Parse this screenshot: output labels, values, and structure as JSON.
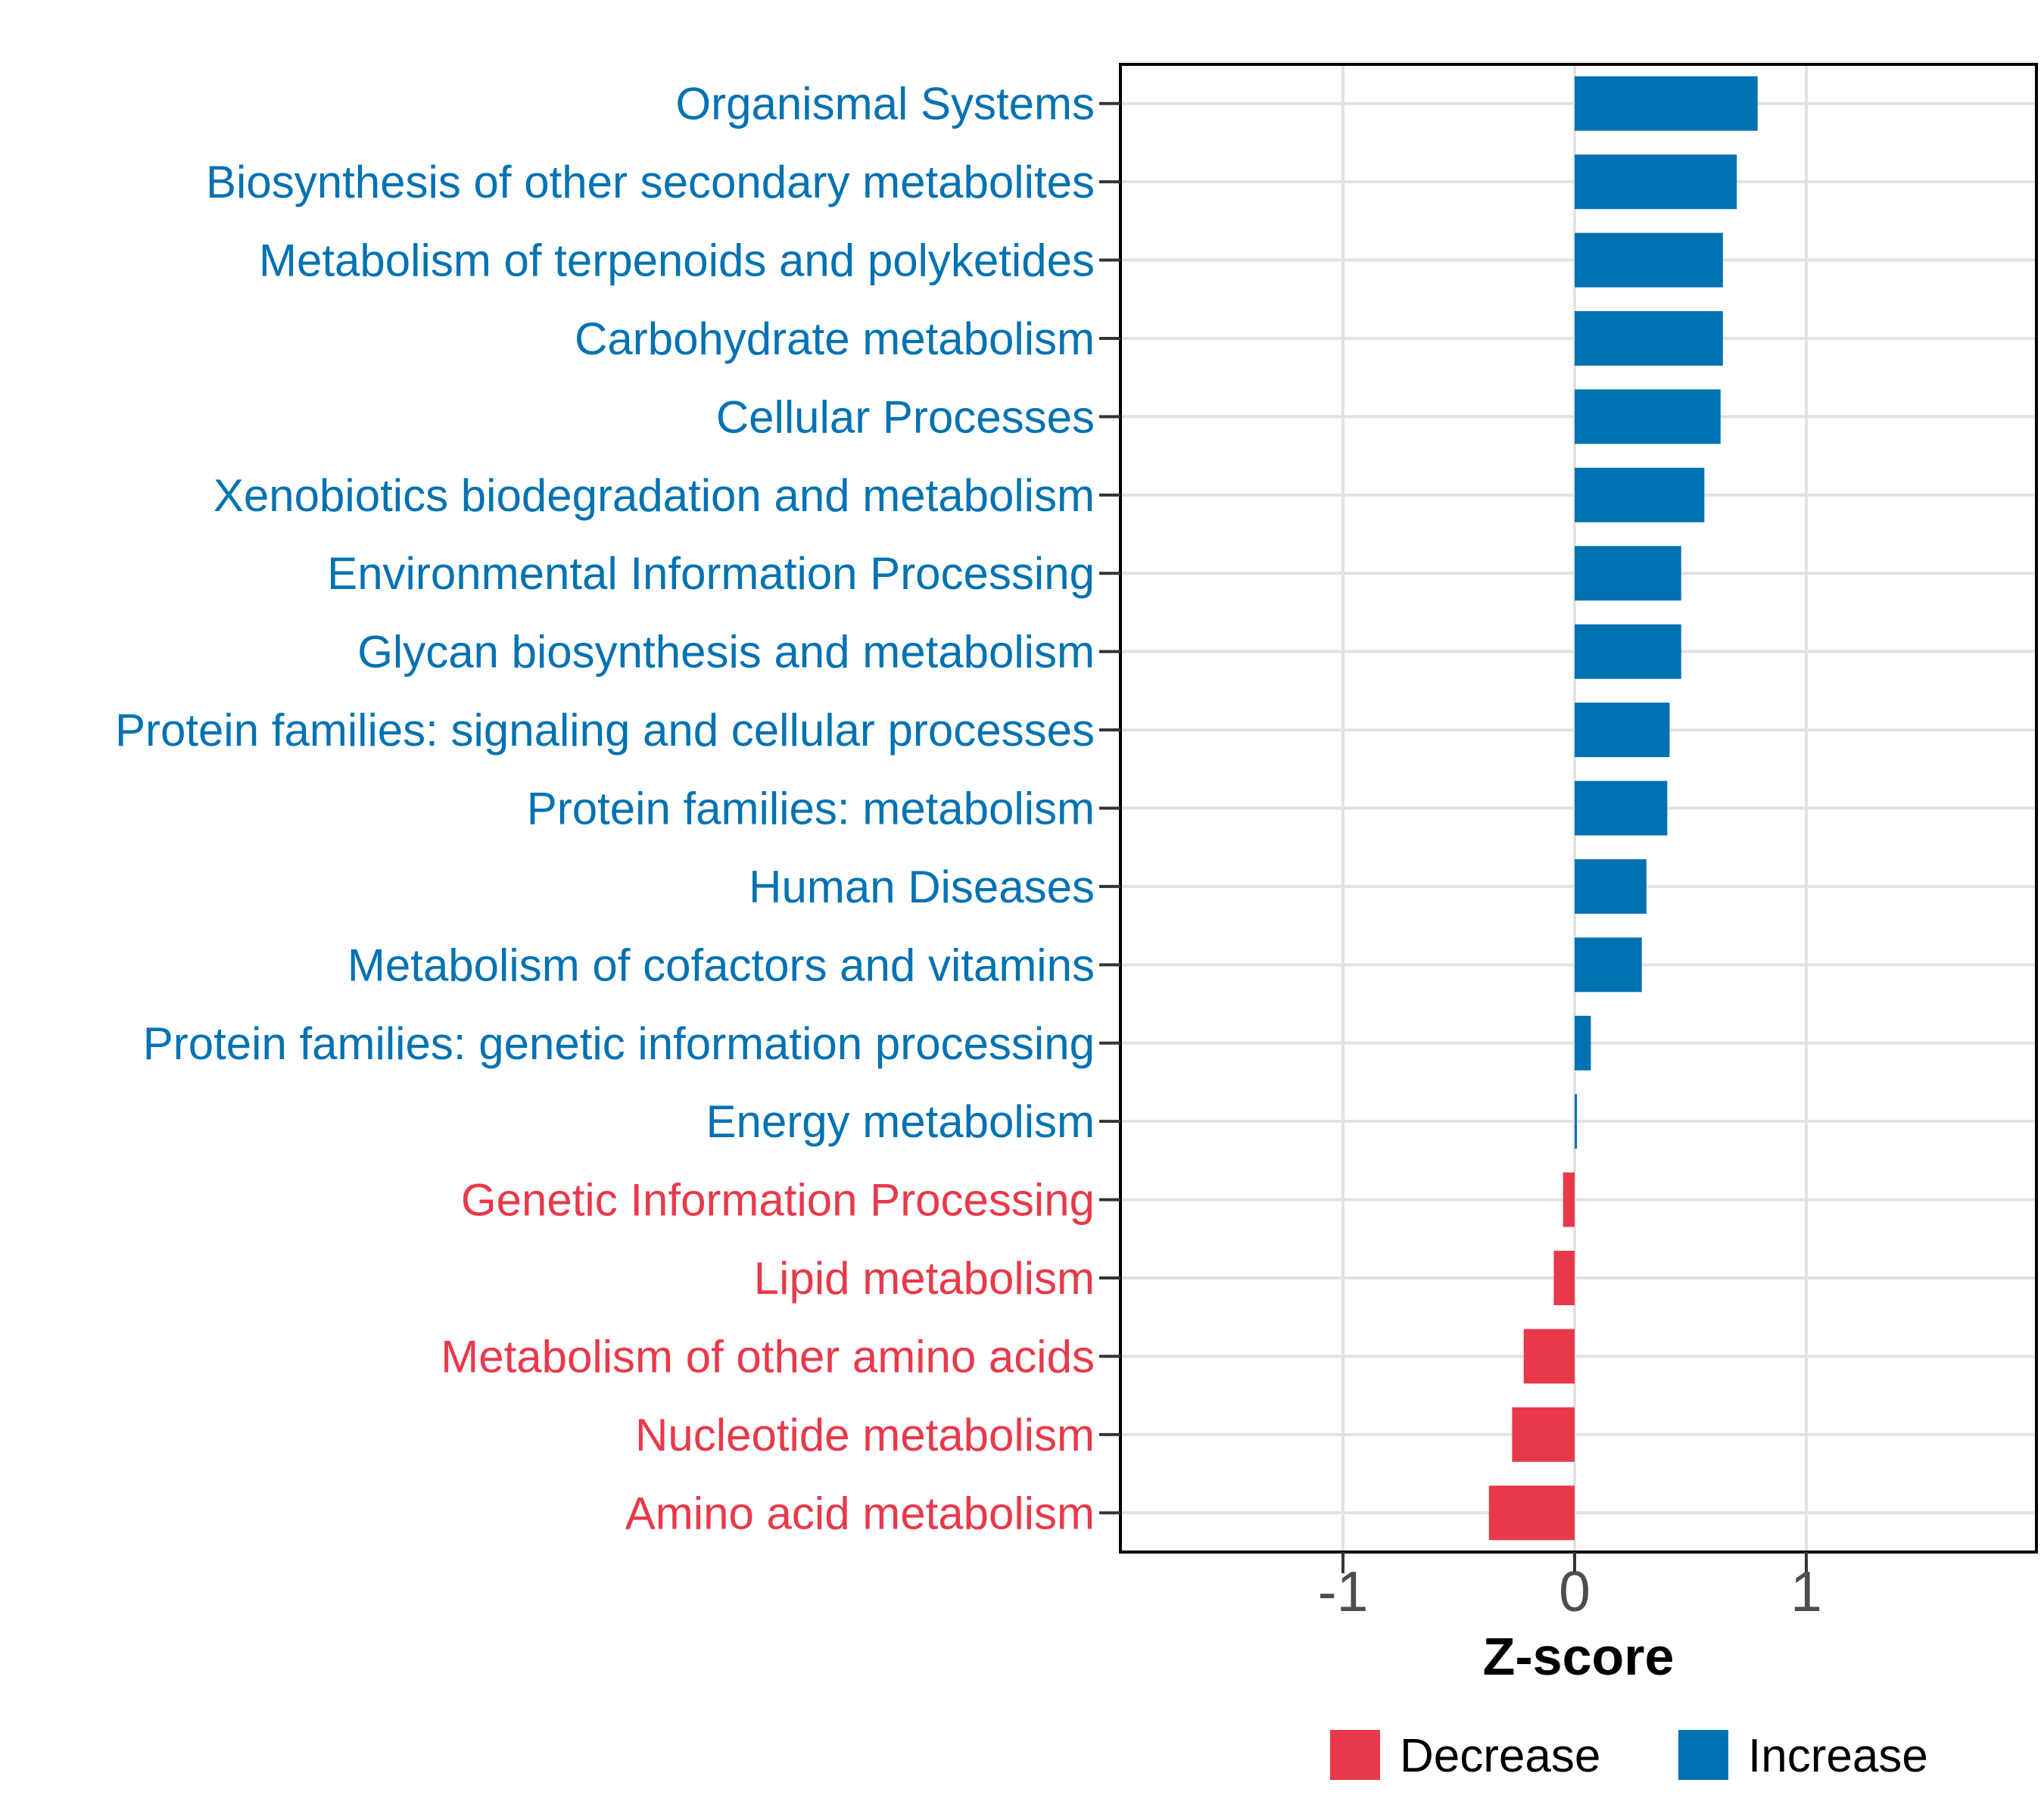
{
  "chart_data": {
    "type": "bar",
    "orientation": "horizontal",
    "title": "",
    "xlabel": "Z-score",
    "ylabel": "",
    "xlim": [
      -1.96,
      2.0
    ],
    "x_ticks": [
      -1,
      0,
      1
    ],
    "x_tick_labels": [
      "-1",
      "0",
      "1"
    ],
    "grid": "major-only",
    "legend_position": "bottom-right",
    "categories": [
      "Organismal Systems",
      "Biosynthesis of other secondary metabolites",
      "Metabolism of terpenoids and polyketides",
      "Carbohydrate metabolism",
      "Cellular Processes",
      "Xenobiotics biodegradation and metabolism",
      "Environmental Information Processing",
      "Glycan biosynthesis and metabolism",
      "Protein families: signaling and cellular processes",
      "Protein families: metabolism",
      "Human Diseases",
      "Metabolism of cofactors and vitamins",
      "Protein families: genetic information processing",
      "Energy metabolism",
      "Genetic Information Processing",
      "Lipid metabolism",
      "Metabolism of other amino acids",
      "Nucleotide metabolism",
      "Amino acid metabolism"
    ],
    "values": [
      0.79,
      0.7,
      0.64,
      0.64,
      0.63,
      0.56,
      0.46,
      0.46,
      0.41,
      0.4,
      0.31,
      0.29,
      0.07,
      0.01,
      -0.05,
      -0.09,
      -0.22,
      -0.27,
      -0.37
    ],
    "directions": [
      "Increase",
      "Increase",
      "Increase",
      "Increase",
      "Increase",
      "Increase",
      "Increase",
      "Increase",
      "Increase",
      "Increase",
      "Increase",
      "Increase",
      "Increase",
      "Increase",
      "Decrease",
      "Decrease",
      "Decrease",
      "Decrease",
      "Decrease"
    ],
    "legend": [
      {
        "label": "Decrease",
        "color": "#E8394A"
      },
      {
        "label": "Increase",
        "color": "#0072B2"
      }
    ]
  },
  "axis": {
    "x_title": "Z-score"
  },
  "colors": {
    "increase": "#0072B2",
    "decrease": "#E8394A",
    "gridline": "#E2E2E2",
    "panel_border": "#000000",
    "tick": "#333333",
    "tick_label": "#4D4D4D",
    "axis_title": "#000000",
    "background": "#FFFFFF",
    "legend_text": "#000000"
  }
}
